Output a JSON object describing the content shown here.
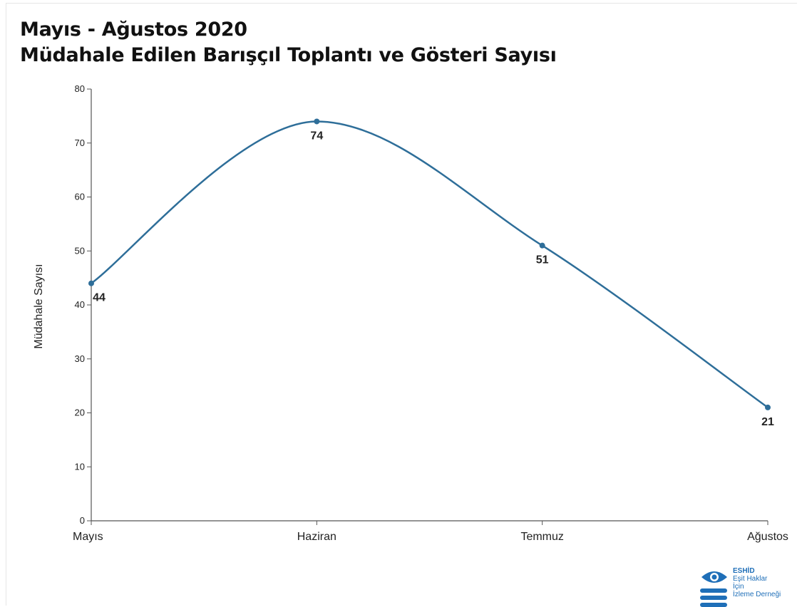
{
  "colors": {
    "line": "#2e6e99",
    "axis": "#555555",
    "text": "#222222",
    "logo": "#1f6fb8"
  },
  "chart_data": {
    "type": "line",
    "title": "Mayıs - Ağustos 2020",
    "subtitle": "Müdahale Edilen Barışçıl Toplantı ve Gösteri Sayısı",
    "xlabel": "",
    "ylabel": "Müdahale Sayısı",
    "categories": [
      "Mayıs",
      "Haziran",
      "Temmuz",
      "Ağustos"
    ],
    "values": [
      44,
      74,
      51,
      21
    ],
    "ylim": [
      0,
      80
    ],
    "yticks": [
      0,
      10,
      20,
      30,
      40,
      50,
      60,
      70,
      80
    ],
    "grid": false,
    "curve": "smooth",
    "data_labels": true
  },
  "logo": {
    "icon": "eye-icon",
    "lines": [
      "ESHİD",
      "Eşit Haklar",
      "İçin",
      "İzleme Derneği"
    ]
  }
}
